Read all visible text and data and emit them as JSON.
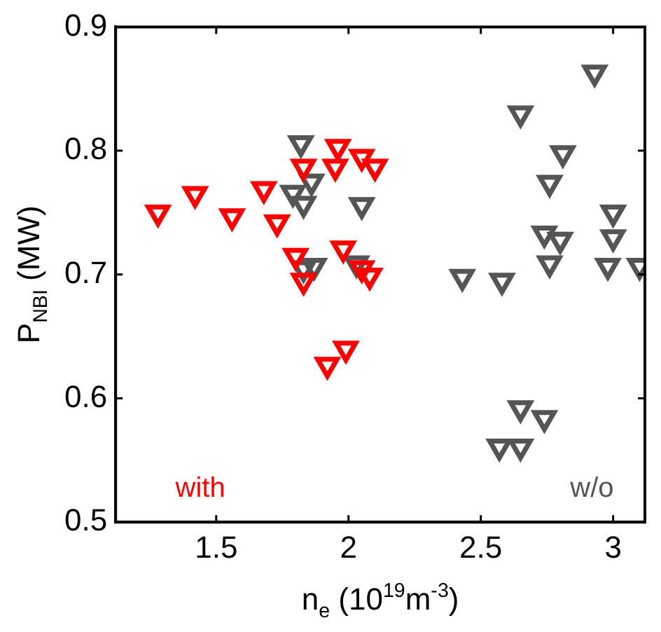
{
  "chart_data": {
    "type": "scatter",
    "xlabel": "n$_{e}$ (10$^{19}$m$^{-3}$)",
    "ylabel": "P$_{NBI}$ (MW)",
    "xlim": [
      1.12,
      3.12
    ],
    "xticks": [
      1.5,
      2,
      2.5,
      3
    ],
    "ylim": [
      0.5,
      0.9
    ],
    "yticks": [
      0.5,
      0.6,
      0.7,
      0.8,
      0.9
    ],
    "grid": false,
    "legend": false,
    "marker": "triangle",
    "series": [
      {
        "name": "with",
        "color": "#ff0000",
        "x": [
          1.28,
          1.42,
          1.56,
          1.68,
          1.73,
          1.8,
          1.83,
          1.83,
          1.96,
          1.95,
          2.05,
          2.1,
          1.98,
          2.05,
          2.08,
          1.92,
          1.99
        ],
        "values": [
          0.75,
          0.765,
          0.747,
          0.769,
          0.742,
          0.715,
          0.695,
          0.787,
          0.803,
          0.787,
          0.795,
          0.787,
          0.721,
          0.705,
          0.699,
          0.627,
          0.64
        ]
      },
      {
        "name": "w/o",
        "color": "#555555",
        "x": [
          1.82,
          1.86,
          1.79,
          1.83,
          2.05,
          1.83,
          1.87,
          2.03,
          2.93,
          2.65,
          2.81,
          2.76,
          3.0,
          2.74,
          2.8,
          3.0,
          2.76,
          2.98,
          3.1,
          2.43,
          2.58,
          2.65,
          2.74,
          2.57,
          2.65
        ],
        "values": [
          0.806,
          0.775,
          0.766,
          0.757,
          0.756,
          0.705,
          0.707,
          0.709,
          0.863,
          0.83,
          0.798,
          0.774,
          0.75,
          0.733,
          0.728,
          0.73,
          0.709,
          0.707,
          0.707,
          0.698,
          0.695,
          0.592,
          0.584,
          0.561,
          0.561
        ]
      }
    ]
  }
}
